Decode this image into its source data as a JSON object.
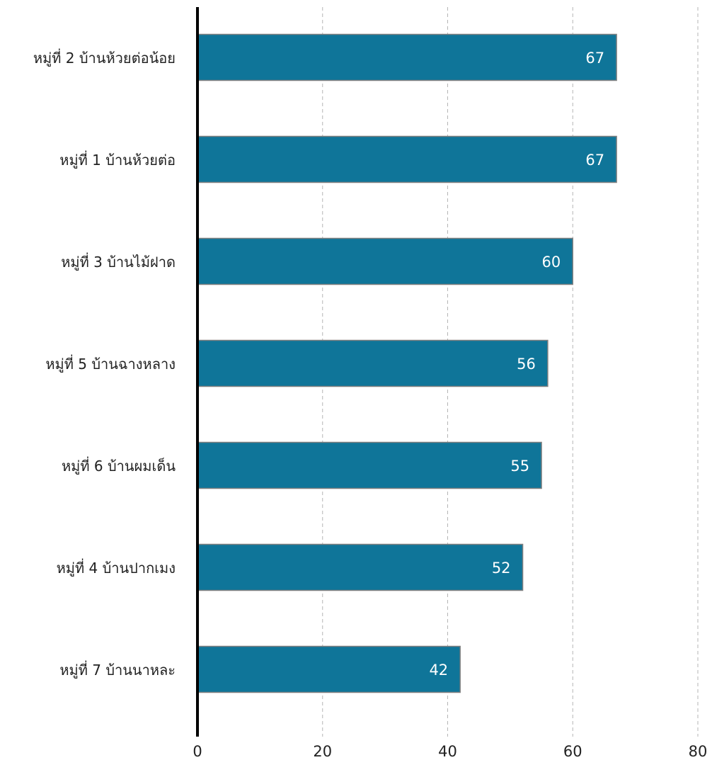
{
  "chart_data": {
    "type": "bar",
    "orientation": "horizontal",
    "categories": [
      "หมู่ที่ 2 บ้านห้วยต่อน้อย",
      "หมู่ที่ 1 บ้านห้วยต่อ",
      "หมู่ที่ 3 บ้านไม้ฝาด",
      "หมู่ที่ 5 บ้านฉางหลาง",
      "หมู่ที่ 6 บ้านผมเด็น",
      "หมู่ที่ 4 บ้านปากเมง",
      "หมู่ที่ 7 บ้านนาหละ"
    ],
    "values": [
      67,
      67,
      60,
      56,
      55,
      52,
      42
    ],
    "title": "",
    "xlabel": "",
    "ylabel": "",
    "xlim": [
      0,
      80
    ],
    "x_ticks": [
      0,
      20,
      40,
      60,
      80
    ],
    "grid": "vertical dashed",
    "legend": "none",
    "data_labels": "inside-end",
    "bar_color": "#0f7599",
    "bar_edge_color": "#7f7f7f",
    "value_label_color": "#ffffff"
  }
}
